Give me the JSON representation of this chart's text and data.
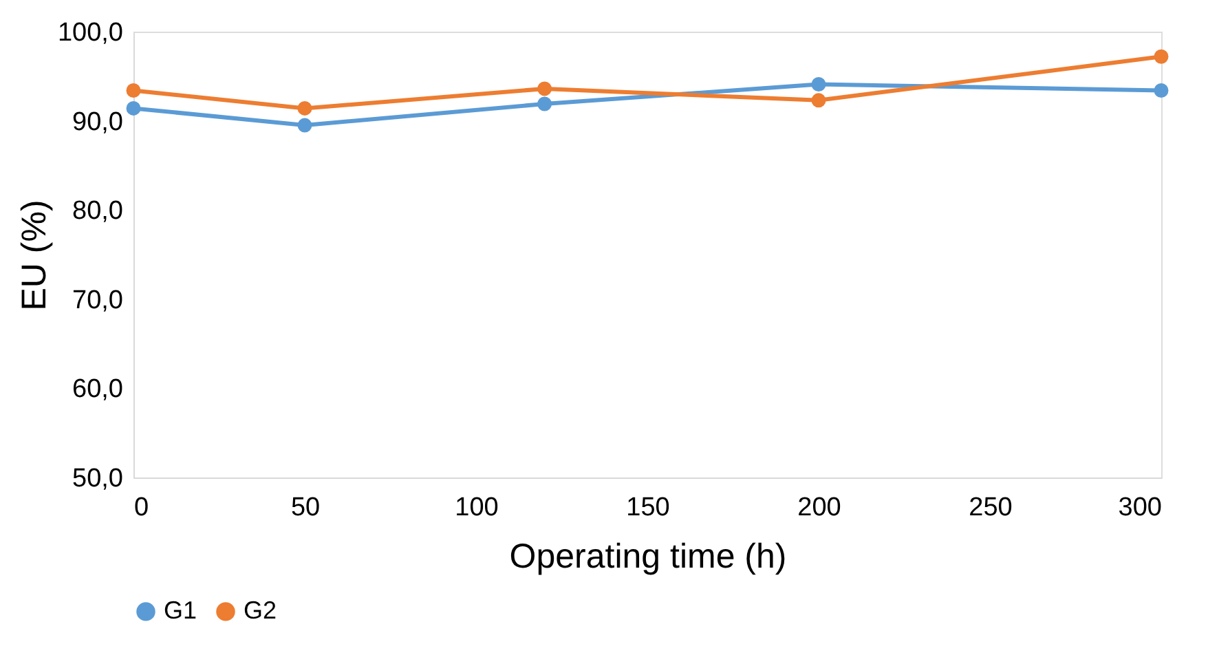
{
  "chart_data": {
    "type": "line",
    "xlabel": "Operating time (h)",
    "ylabel": "EU (%)",
    "x": [
      0,
      50,
      120,
      200,
      300
    ],
    "series": [
      {
        "name": "G1",
        "color": "#5b9bd5",
        "values": [
          91.4,
          89.5,
          91.9,
          94.1,
          93.4
        ]
      },
      {
        "name": "G2",
        "color": "#ed7d31",
        "values": [
          93.4,
          91.4,
          93.6,
          92.3,
          97.2
        ]
      }
    ],
    "xlim": [
      0,
      300
    ],
    "xticks": [
      0,
      50,
      100,
      150,
      200,
      250,
      300
    ],
    "ylim": [
      50,
      100
    ],
    "yticks": [
      {
        "value": 50,
        "label": "50,0"
      },
      {
        "value": 60,
        "label": "60,0"
      },
      {
        "value": 70,
        "label": "70,0"
      },
      {
        "value": 80,
        "label": "80,0"
      },
      {
        "value": 90,
        "label": "90,0"
      },
      {
        "value": 100,
        "label": "100,0"
      }
    ],
    "grid": false,
    "legend": "bottom",
    "marker": "circle",
    "line_style": "solid"
  }
}
